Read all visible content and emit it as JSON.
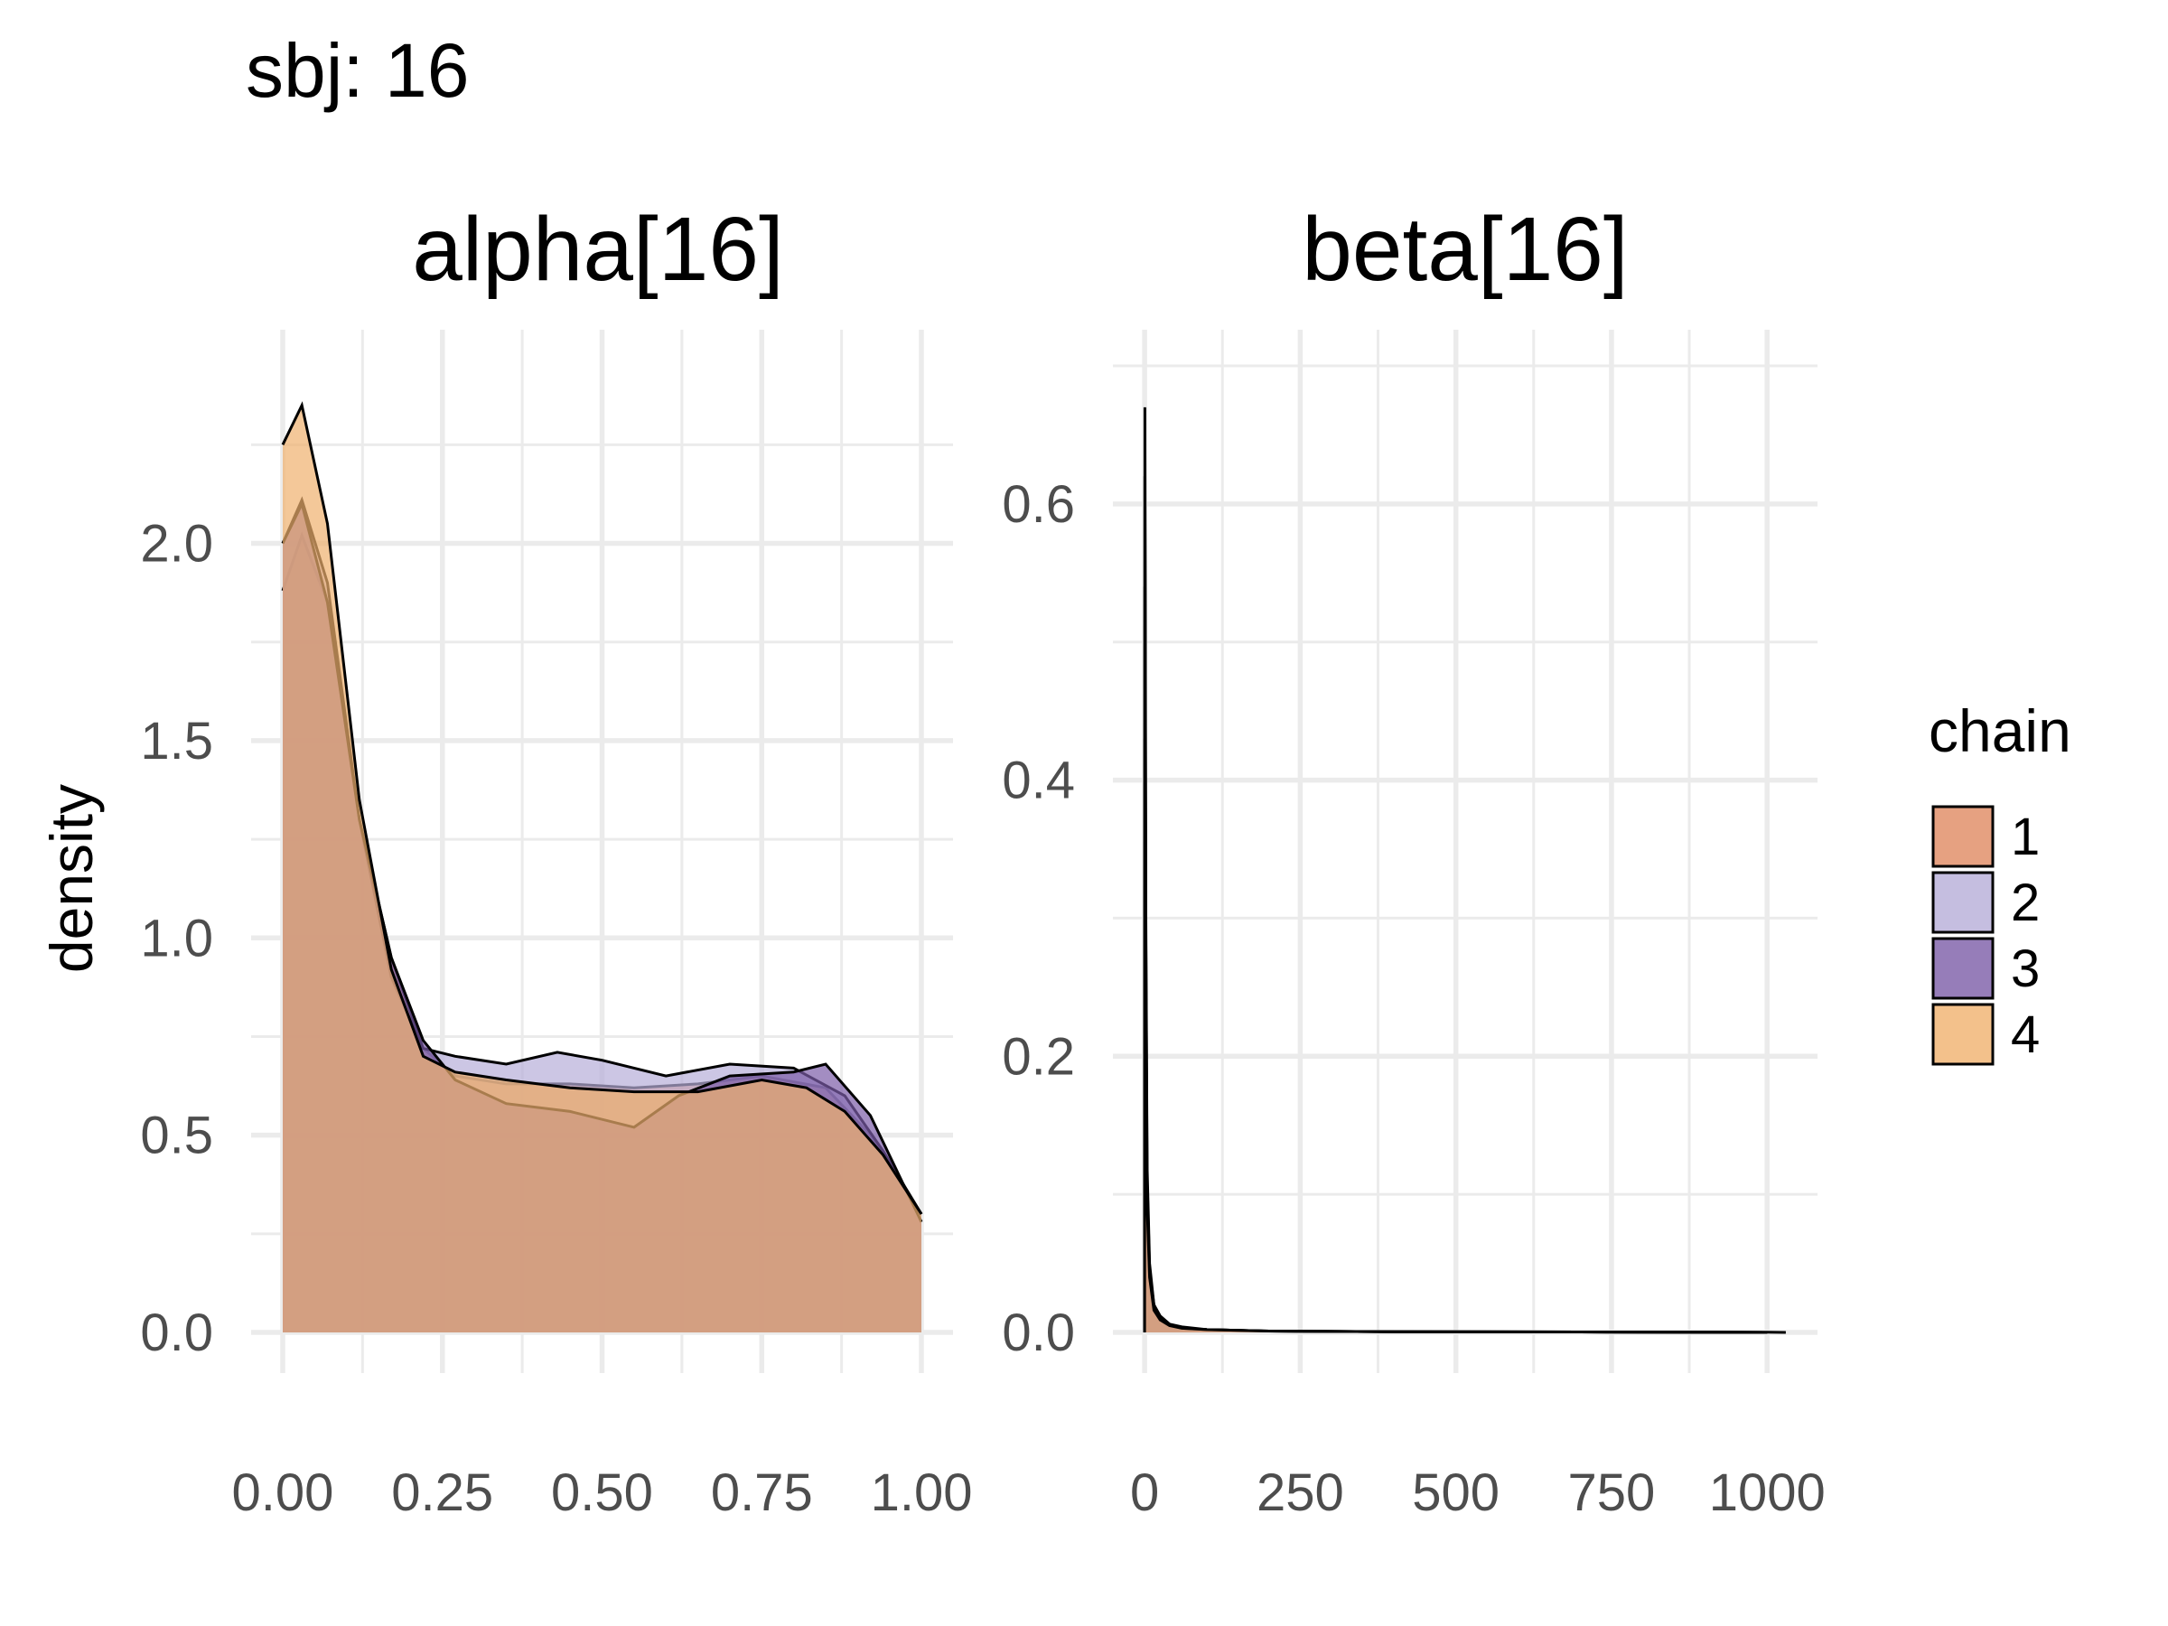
{
  "figure_title": "sbj: 16",
  "legend": {
    "title": "chain",
    "items": [
      {
        "label": "1",
        "color": "#E08961"
      },
      {
        "label": "2",
        "color": "#B6AED8"
      },
      {
        "label": "3",
        "color": "#7C5CA8"
      },
      {
        "label": "4",
        "color": "#F0B16E"
      }
    ]
  },
  "colors": {
    "fill_alpha": 0.7,
    "outline": "#000000",
    "grid": "#EBEBEB",
    "text": "#4D4D4D"
  },
  "chart_data": [
    {
      "type": "area",
      "title": "alpha[16]",
      "xlabel": "",
      "ylabel": "density",
      "xlim": [
        0,
        1
      ],
      "ylim": [
        0,
        2.45
      ],
      "x_ticks": [
        "0.00",
        "0.25",
        "0.50",
        "0.75",
        "1.00"
      ],
      "y_ticks": [
        "0.0",
        "0.5",
        "1.0",
        "1.5",
        "2.0"
      ],
      "grid": true,
      "series": [
        {
          "name": "1",
          "color": "#E08961",
          "x": [
            0,
            0.03,
            0.07,
            0.12,
            0.17,
            0.22,
            0.27,
            0.35,
            0.45,
            0.55,
            0.65,
            0.75,
            0.85,
            0.92,
            1.0
          ],
          "y": [
            1.88,
            2.02,
            1.85,
            1.3,
            0.95,
            0.72,
            0.65,
            0.63,
            0.63,
            0.62,
            0.63,
            0.65,
            0.62,
            0.5,
            0.3
          ]
        },
        {
          "name": "2",
          "color": "#B6AED8",
          "x": [
            0,
            0.03,
            0.07,
            0.12,
            0.17,
            0.22,
            0.27,
            0.35,
            0.43,
            0.5,
            0.6,
            0.7,
            0.8,
            0.88,
            0.94,
            1.0
          ],
          "y": [
            2.0,
            2.11,
            1.9,
            1.3,
            0.9,
            0.72,
            0.7,
            0.68,
            0.71,
            0.69,
            0.65,
            0.68,
            0.67,
            0.6,
            0.46,
            0.3
          ]
        },
        {
          "name": "3",
          "color": "#7C5CA8",
          "x": [
            0,
            0.03,
            0.07,
            0.12,
            0.17,
            0.22,
            0.27,
            0.35,
            0.45,
            0.55,
            0.62,
            0.7,
            0.8,
            0.85,
            0.92,
            1.0
          ],
          "y": [
            2.0,
            2.1,
            1.85,
            1.3,
            0.95,
            0.74,
            0.64,
            0.58,
            0.56,
            0.52,
            0.6,
            0.65,
            0.66,
            0.68,
            0.55,
            0.28
          ]
        },
        {
          "name": "4",
          "color": "#F0B16E",
          "x": [
            0,
            0.03,
            0.07,
            0.12,
            0.17,
            0.22,
            0.27,
            0.35,
            0.45,
            0.55,
            0.65,
            0.75,
            0.82,
            0.88,
            0.94,
            1.0
          ],
          "y": [
            2.25,
            2.35,
            2.05,
            1.35,
            0.92,
            0.7,
            0.66,
            0.64,
            0.62,
            0.61,
            0.61,
            0.64,
            0.62,
            0.56,
            0.45,
            0.3
          ]
        }
      ]
    },
    {
      "type": "area",
      "title": "beta[16]",
      "xlabel": "",
      "ylabel": "",
      "xlim": [
        0,
        1030
      ],
      "ylim": [
        0,
        0.7
      ],
      "x_ticks": [
        "0",
        "250",
        "500",
        "750",
        "1000"
      ],
      "y_ticks": [
        "0.0",
        "0.2",
        "0.4",
        "0.6"
      ],
      "grid": true,
      "series": [
        {
          "name": "1",
          "color": "#E08961",
          "x": [
            0,
            0.5,
            1,
            2,
            4,
            8,
            15,
            25,
            40,
            60,
            100,
            200,
            400,
            700,
            1000,
            1030
          ],
          "y": [
            0.0,
            0.67,
            0.55,
            0.3,
            0.12,
            0.05,
            0.02,
            0.012,
            0.006,
            0.004,
            0.002,
            0.001,
            0.0005,
            0.0003,
            0.0002,
            0.0
          ]
        },
        {
          "name": "2",
          "color": "#B6AED8",
          "x": [
            0,
            0.5,
            1,
            2,
            4,
            8,
            15,
            25,
            40,
            60,
            100,
            200,
            400,
            700,
            1000
          ],
          "y": [
            0.0,
            0.62,
            0.5,
            0.28,
            0.11,
            0.045,
            0.02,
            0.01,
            0.005,
            0.003,
            0.002,
            0.001,
            0.0005,
            0.0003,
            0.0
          ]
        },
        {
          "name": "3",
          "color": "#7C5CA8",
          "x": [
            0,
            0.5,
            1,
            2,
            4,
            8,
            15,
            25,
            40,
            60,
            100,
            200,
            400,
            700,
            1000
          ],
          "y": [
            0.0,
            0.54,
            0.45,
            0.25,
            0.1,
            0.04,
            0.018,
            0.01,
            0.005,
            0.003,
            0.002,
            0.001,
            0.0005,
            0.0003,
            0.0
          ]
        },
        {
          "name": "4",
          "color": "#F0B16E",
          "x": [
            0,
            0.5,
            1,
            2,
            4,
            8,
            15,
            25,
            40,
            60,
            100,
            200,
            400,
            700,
            1000
          ],
          "y": [
            0.0,
            0.43,
            0.36,
            0.22,
            0.09,
            0.04,
            0.016,
            0.009,
            0.005,
            0.003,
            0.002,
            0.001,
            0.0005,
            0.0003,
            0.0
          ]
        }
      ]
    }
  ]
}
